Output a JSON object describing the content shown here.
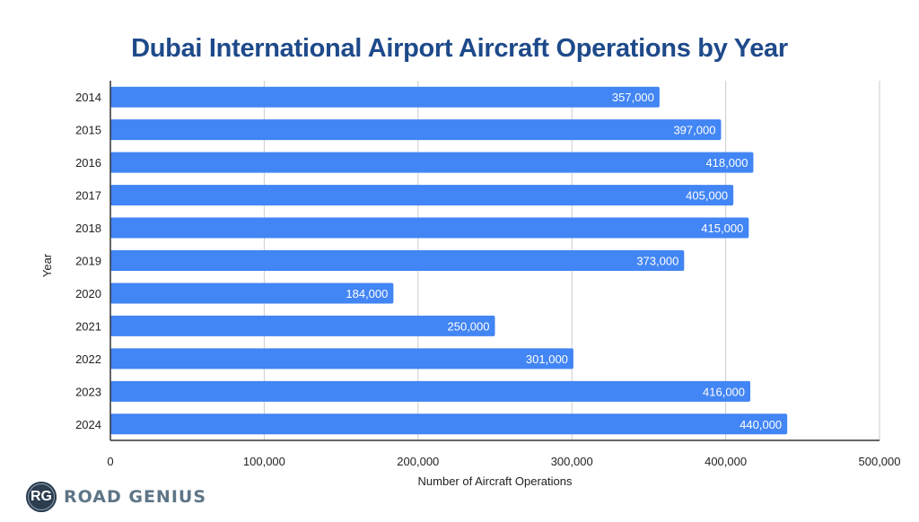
{
  "brand": {
    "badge": "RG",
    "name": "ROAD GENIUS"
  },
  "colors": {
    "bar": "#4285f4",
    "title": "#1e4a8a",
    "grid": "#cccccc",
    "axis": "#333333"
  },
  "chart_data": {
    "type": "bar",
    "orientation": "horizontal",
    "title": "Dubai International Airport Aircraft Operations by Year",
    "xlabel": "Number of Aircraft Operations",
    "ylabel": "Year",
    "categories": [
      "2014",
      "2015",
      "2016",
      "2017",
      "2018",
      "2019",
      "2020",
      "2021",
      "2022",
      "2023",
      "2024"
    ],
    "values": [
      357000,
      397000,
      418000,
      405000,
      415000,
      373000,
      184000,
      250000,
      301000,
      416000,
      440000
    ],
    "data_labels": [
      "357,000",
      "397,000",
      "418,000",
      "405,000",
      "415,000",
      "373,000",
      "184,000",
      "250,000",
      "301,000",
      "416,000",
      "440,000"
    ],
    "xlim": [
      0,
      500000
    ],
    "xticks": [
      0,
      100000,
      200000,
      300000,
      400000,
      500000
    ],
    "xtick_labels": [
      "0",
      "100,000",
      "200,000",
      "300,000",
      "400,000",
      "500,000"
    ],
    "grid": true,
    "legend": "none"
  }
}
